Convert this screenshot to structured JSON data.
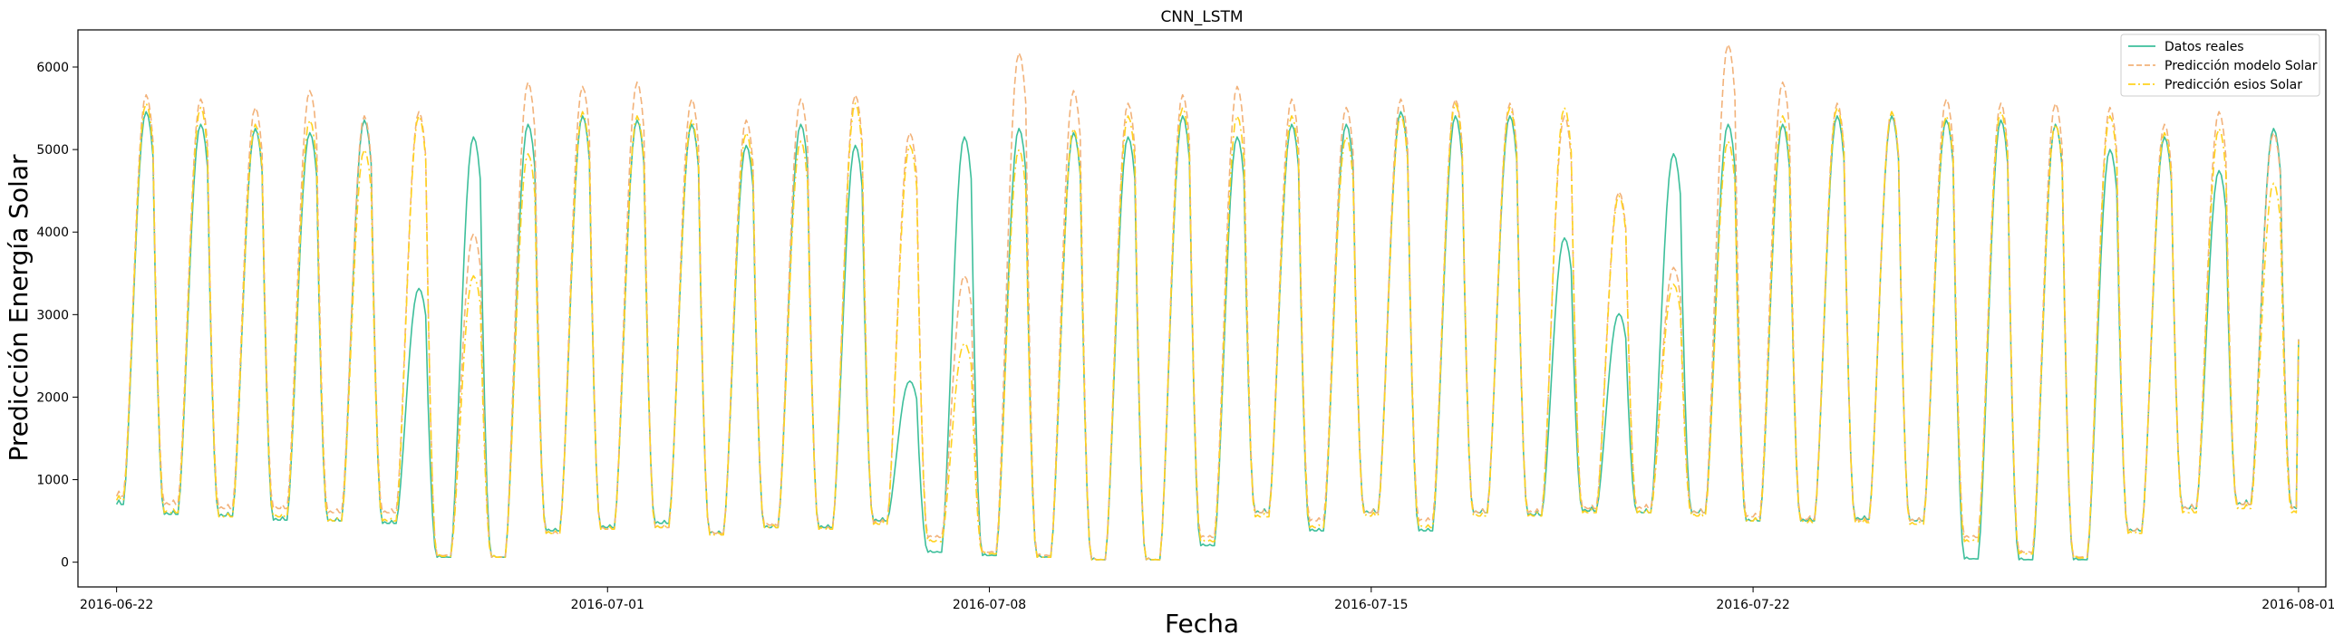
{
  "chart_data": {
    "type": "line",
    "title": "CNN_LSTM",
    "xlabel": "Fecha",
    "ylabel": "Predicción Energía Solar",
    "xlim": [
      "2016-06-21T07:00",
      "2016-08-01T12:00"
    ],
    "ylim": [
      -300,
      6450
    ],
    "x_ticks": [
      "2016-06-22",
      "2016-07-01",
      "2016-07-08",
      "2016-07-15",
      "2016-07-22",
      "2016-08-01"
    ],
    "y_ticks": [
      0,
      1000,
      2000,
      3000,
      4000,
      5000,
      6000
    ],
    "grid": false,
    "legend_position": "top-right",
    "series": [
      {
        "name": "Datos reales",
        "color": "#3dbf9b",
        "style": "solid",
        "start": "2016-06-22",
        "night_values": [
          700,
          580,
          560,
          510,
          500,
          470,
          60,
          60,
          380,
          420,
          470,
          350,
          420,
          420,
          500,
          120,
          80,
          60,
          30,
          30,
          200,
          600,
          380,
          600,
          380,
          600,
          570,
          620,
          600,
          600,
          500,
          500,
          520,
          500,
          40,
          30,
          30,
          380,
          650,
          700,
          650,
          700,
          650,
          630,
          630,
          580,
          560,
          510,
          400,
          500,
          2700
        ],
        "peak_values": [
          5350,
          5200,
          5150,
          5100,
          5250,
          3250,
          5050,
          5200,
          5300,
          5250,
          5200,
          4950,
          5200,
          4950,
          2150,
          5050,
          5150,
          5100,
          5050,
          5300,
          5050,
          5200,
          5200,
          5350,
          5300,
          5300,
          3850,
          2950,
          4850,
          5200,
          5200,
          5300,
          5300,
          5250,
          5250,
          5200,
          4900,
          5050,
          4650,
          5150
        ]
      },
      {
        "name": "Predicción modelo Solar",
        "color": "#f2b27a",
        "style": "dashed",
        "start": "2016-06-22",
        "night_values": [
          800,
          700,
          650,
          650,
          600,
          600,
          80,
          60,
          350,
          400,
          420,
          350,
          450,
          400,
          480,
          300,
          120,
          80,
          30,
          30,
          300,
          600,
          500,
          600,
          500,
          600,
          600,
          650,
          650,
          600,
          550,
          520,
          500,
          500,
          300,
          120,
          60,
          380,
          650,
          700,
          650,
          700,
          650,
          630,
          620,
          580,
          540,
          500,
          400,
          500,
          2700
        ],
        "peak_values": [
          5550,
          5500,
          5400,
          5600,
          5300,
          5350,
          3900,
          5700,
          5650,
          5700,
          5500,
          5250,
          5500,
          5550,
          5100,
          3400,
          6050,
          5600,
          5450,
          5550,
          5650,
          5500,
          5400,
          5500,
          5500,
          5450,
          5300,
          4400,
          3500,
          6150,
          5700,
          5450,
          5350,
          5500,
          5450,
          5450,
          5400,
          5200,
          5350,
          5100
        ]
      },
      {
        "name": "Predicción esios Solar",
        "color": "#ffd21f",
        "style": "dashdot",
        "start": "2016-06-22",
        "night_values": [
          750,
          600,
          550,
          550,
          500,
          500,
          70,
          60,
          350,
          400,
          420,
          330,
          420,
          400,
          460,
          250,
          100,
          60,
          30,
          30,
          250,
          550,
          420,
          560,
          420,
          560,
          560,
          600,
          600,
          560,
          500,
          480,
          480,
          460,
          250,
          100,
          50,
          350,
          600,
          650,
          600,
          650,
          600,
          580,
          580,
          540,
          500,
          460,
          380,
          450,
          2700
        ],
        "peak_values": [
          5450,
          5400,
          5200,
          5250,
          4900,
          5300,
          3400,
          4850,
          5350,
          5300,
          5250,
          5100,
          5000,
          5450,
          4950,
          2600,
          4900,
          5150,
          5300,
          5400,
          5300,
          5300,
          5050,
          5300,
          5450,
          5400,
          5400,
          4350,
          3300,
          5000,
          5300,
          5400,
          5350,
          5300,
          5350,
          5200,
          5300,
          5100,
          5150,
          4500
        ]
      }
    ]
  }
}
